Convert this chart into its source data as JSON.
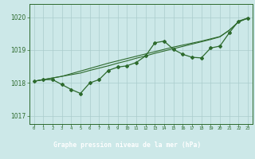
{
  "title": "Graphe pression niveau de la mer (hPa)",
  "xlabel_hours": [
    0,
    1,
    2,
    3,
    4,
    5,
    6,
    7,
    8,
    9,
    10,
    11,
    12,
    13,
    14,
    15,
    16,
    17,
    18,
    19,
    20,
    21,
    22,
    23
  ],
  "main_line": [
    1018.05,
    1018.1,
    1018.1,
    1017.95,
    1017.8,
    1017.68,
    1018.0,
    1018.1,
    1018.38,
    1018.48,
    1018.52,
    1018.62,
    1018.82,
    1019.22,
    1019.27,
    1019.02,
    1018.87,
    1018.78,
    1018.76,
    1019.06,
    1019.12,
    1019.52,
    1019.88,
    1019.97
  ],
  "trend_line1": [
    1018.05,
    1018.1,
    1018.15,
    1018.2,
    1018.25,
    1018.3,
    1018.38,
    1018.45,
    1018.52,
    1018.6,
    1018.67,
    1018.75,
    1018.82,
    1018.9,
    1018.97,
    1019.04,
    1019.11,
    1019.18,
    1019.25,
    1019.32,
    1019.4,
    1019.6,
    1019.85,
    1019.97
  ],
  "trend_line2": [
    1018.05,
    1018.1,
    1018.15,
    1018.2,
    1018.28,
    1018.36,
    1018.44,
    1018.52,
    1018.6,
    1018.67,
    1018.74,
    1018.81,
    1018.88,
    1018.95,
    1019.02,
    1019.09,
    1019.15,
    1019.21,
    1019.27,
    1019.34,
    1019.41,
    1019.6,
    1019.86,
    1019.97
  ],
  "ylim": [
    1016.75,
    1020.4
  ],
  "yticks": [
    1017,
    1018,
    1019,
    1020
  ],
  "bg_color": "#cce8e8",
  "grid_color": "#aacccc",
  "line_color": "#2d6a2d",
  "title_bg": "#336633",
  "title_text_color": "#ffffff",
  "title_fontsize": 5.8
}
